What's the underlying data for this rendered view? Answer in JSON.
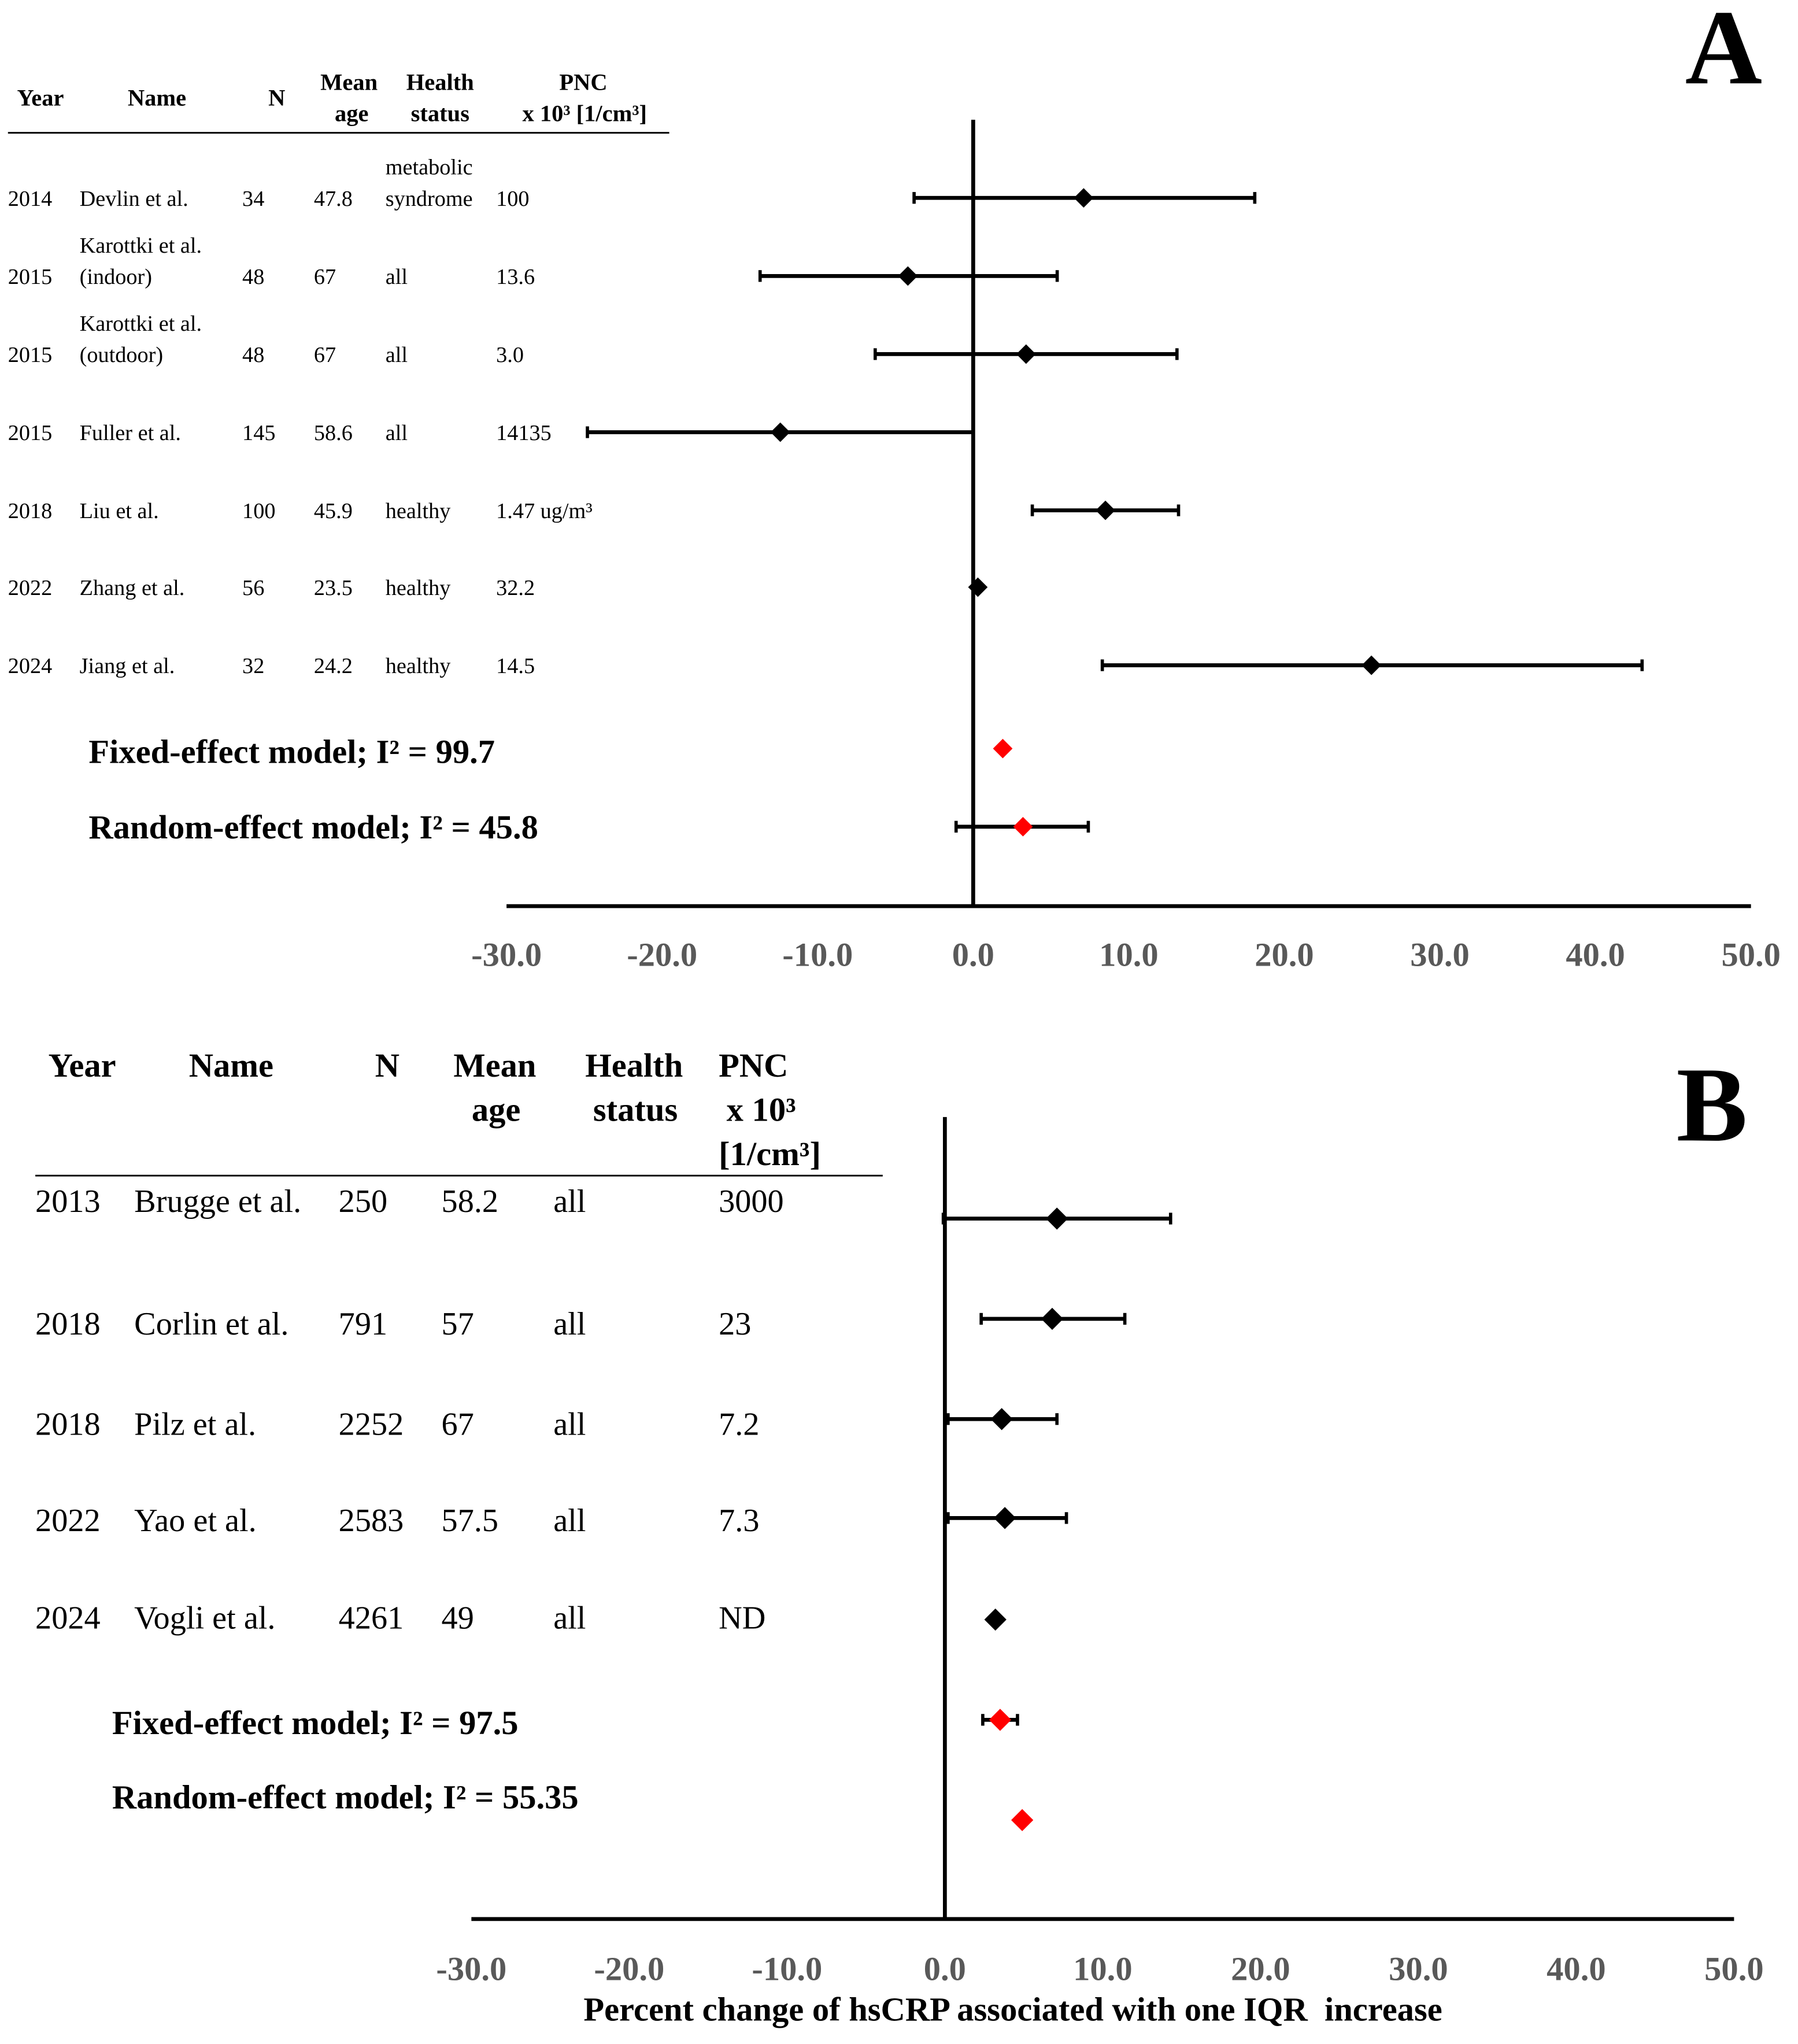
{
  "colors": {
    "study_marker": "#000000",
    "model_marker": "#ff0000",
    "whisker": "#000000",
    "axis": "#000000",
    "tick_label": "#595959"
  },
  "chart_data": [
    {
      "panel_label": "A",
      "type": "scatter",
      "variant": "forest-plot",
      "title": "",
      "header": {
        "year": [
          "Year"
        ],
        "name": [
          "Name"
        ],
        "n": [
          "N"
        ],
        "mean_age": [
          "Mean",
          "age"
        ],
        "health_status": [
          "Health",
          "status"
        ],
        "pnc": [
          "PNC",
          "x 10³ [1/cm³]"
        ]
      },
      "studies": [
        {
          "year": "2014",
          "name": [
            "Devlin et al."
          ],
          "n": "34",
          "mean_age": "47.8",
          "health_status": [
            "metabolic",
            "syndrome"
          ],
          "pnc": "100",
          "estimate": 7.1,
          "ci": [
            -3.8,
            18.1
          ]
        },
        {
          "year": "2015",
          "name": [
            "Karottki et al.",
            "(indoor)"
          ],
          "n": "48",
          "mean_age": "67",
          "health_status": [
            "all"
          ],
          "pnc": "13.6",
          "estimate": -4.2,
          "ci": [
            -13.7,
            5.4
          ]
        },
        {
          "year": "2015",
          "name": [
            "Karottki et al.",
            "(outdoor)"
          ],
          "n": "48",
          "mean_age": "67",
          "health_status": [
            "all"
          ],
          "pnc": "3.0",
          "estimate": 3.4,
          "ci": [
            -6.3,
            13.1
          ]
        },
        {
          "year": "2015",
          "name": [
            "Fuller et al."
          ],
          "n": "145",
          "mean_age": "58.6",
          "health_status": [
            "all"
          ],
          "pnc": "14135",
          "estimate": -12.4,
          "ci": [
            -24.8,
            0.0
          ]
        },
        {
          "year": "2018",
          "name": [
            "Liu et al."
          ],
          "n": "100",
          "mean_age": "45.9",
          "health_status": [
            "healthy"
          ],
          "pnc": "1.47 ug/m³",
          "estimate": 8.5,
          "ci": [
            3.8,
            13.2
          ]
        },
        {
          "year": "2022",
          "name": [
            "Zhang et al."
          ],
          "n": "56",
          "mean_age": "23.5",
          "health_status": [
            "healthy"
          ],
          "pnc": "32.2",
          "estimate": 0.3,
          "ci": null
        },
        {
          "year": "2024",
          "name": [
            "Jiang et al."
          ],
          "n": "32",
          "mean_age": "24.2",
          "health_status": [
            "healthy"
          ],
          "pnc": "14.5",
          "estimate": 25.6,
          "ci": [
            8.3,
            43.0
          ]
        }
      ],
      "models": [
        {
          "label": "Fixed-effect model; I² = 99.7",
          "estimate": 1.9,
          "ci": null
        },
        {
          "label": "Random-effect model; I² = 45.8",
          "estimate": 3.2,
          "ci": [
            -1.1,
            7.4
          ]
        }
      ],
      "reference_line": 0,
      "xlim": [
        -30,
        50
      ],
      "xticks": [
        -30,
        -20,
        -10,
        0,
        10,
        20,
        30,
        40,
        50
      ],
      "xtick_labels": [
        "-30.0",
        "-20.0",
        "-10.0",
        "0.0",
        "10.0",
        "20.0",
        "30.0",
        "40.0",
        "50.0"
      ]
    },
    {
      "panel_label": "B",
      "type": "scatter",
      "variant": "forest-plot",
      "title": "",
      "header": {
        "year": [
          "Year"
        ],
        "name": [
          "Name"
        ],
        "n": [
          "N"
        ],
        "mean_age": [
          "Mean",
          "age"
        ],
        "health_status": [
          "Health",
          "status"
        ],
        "pnc": [
          "PNC",
          "x 10³",
          "[1/cm³]"
        ]
      },
      "studies": [
        {
          "year": "2013",
          "name": [
            "Brugge et al."
          ],
          "n": "250",
          "mean_age": "58.2",
          "health_status": [
            "all"
          ],
          "pnc": "3000",
          "estimate": 7.1,
          "ci": [
            -0.1,
            14.3
          ]
        },
        {
          "year": "2018",
          "name": [
            "Corlin et al."
          ],
          "n": "791",
          "mean_age": "57",
          "health_status": [
            "all"
          ],
          "pnc": "23",
          "estimate": 6.8,
          "ci": [
            2.3,
            11.4
          ]
        },
        {
          "year": "2018",
          "name": [
            "Pilz et al."
          ],
          "n": "2252",
          "mean_age": "67",
          "health_status": [
            "all"
          ],
          "pnc": "7.2",
          "estimate": 3.6,
          "ci": [
            0.2,
            7.1
          ]
        },
        {
          "year": "2022",
          "name": [
            "Yao et al."
          ],
          "n": "2583",
          "mean_age": "57.5",
          "health_status": [
            "all"
          ],
          "pnc": "7.3",
          "estimate": 3.8,
          "ci": [
            0.2,
            7.7
          ]
        },
        {
          "year": "2024",
          "name": [
            "Vogli et al."
          ],
          "n": "4261",
          "mean_age": "49",
          "health_status": [
            "all"
          ],
          "pnc": "ND",
          "estimate": 3.2,
          "ci": null
        }
      ],
      "models": [
        {
          "label": "Fixed-effect model; I² = 97.5",
          "estimate": 3.5,
          "ci": [
            2.4,
            4.6
          ]
        },
        {
          "label": "Random-effect model; I² = 55.35",
          "estimate": 4.9,
          "ci": null
        }
      ],
      "reference_line": 0,
      "xlim": [
        -30,
        50
      ],
      "xticks": [
        -30,
        -20,
        -10,
        0,
        10,
        20,
        30,
        40,
        50
      ],
      "xtick_labels": [
        "-30.0",
        "-20.0",
        "-10.0",
        "0.0",
        "10.0",
        "20.0",
        "30.0",
        "40.0",
        "50.0"
      ],
      "xlabel": "Percent change of hsCRP associated with one IQR  increase"
    }
  ]
}
